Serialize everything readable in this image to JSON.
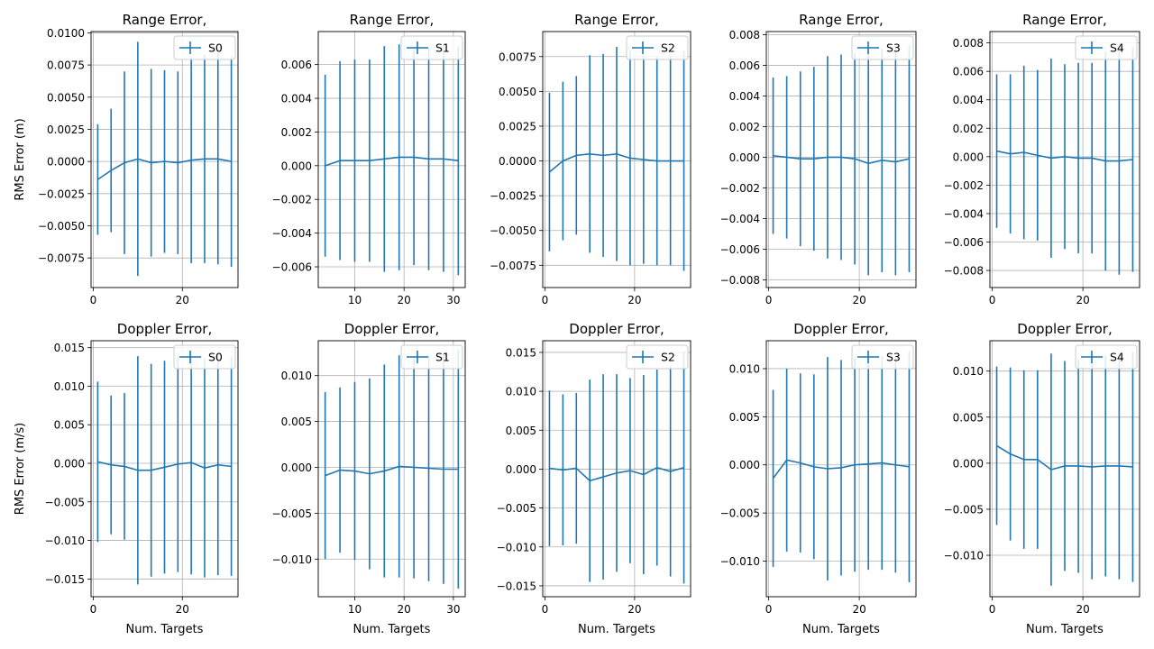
{
  "figure": {
    "background": "#ffffff",
    "line_color": "#1f77b4",
    "grid_color": "#b0b0b0"
  },
  "chart_data": [
    {
      "type": "line",
      "title": "Range Error,",
      "legend": "S0",
      "legend_loc": "top-right",
      "xlabel": "",
      "ylabel": "RMS Error (m)",
      "grid": true,
      "xlim": [
        -0.5,
        32.5
      ],
      "ylim": [
        -0.0098,
        0.0101
      ],
      "xticks": [
        0,
        20
      ],
      "xticklabels": [
        "0",
        "20"
      ],
      "yticks": [
        -0.0075,
        -0.005,
        -0.0025,
        0,
        0.0025,
        0.005,
        0.0075,
        0.01
      ],
      "yticklabels": [
        "−0.0075",
        "−0.0050",
        "−0.0025",
        "0.0000",
        "0.0025",
        "0.0050",
        "0.0075",
        "0.0100"
      ],
      "x": [
        1,
        4,
        7,
        10,
        13,
        16,
        19,
        22,
        25,
        28,
        31
      ],
      "y": [
        -0.0014,
        -0.0007,
        -0.0001,
        0.0002,
        -0.0001,
        0.0,
        -0.0001,
        0.0001,
        0.0002,
        0.0002,
        0.0
      ],
      "err": [
        0.0043,
        0.0048,
        0.0071,
        0.0091,
        0.0073,
        0.0071,
        0.0071,
        0.008,
        0.0081,
        0.0082,
        0.0082
      ]
    },
    {
      "type": "line",
      "title": "Range Error,",
      "legend": "S1",
      "legend_loc": "top-right",
      "xlabel": "",
      "ylabel": "",
      "grid": true,
      "xlim": [
        2.6,
        32.4
      ],
      "ylim": [
        -0.00723,
        0.00796
      ],
      "xticks": [
        10,
        20,
        30
      ],
      "xticklabels": [
        "10",
        "20",
        "30"
      ],
      "yticks": [
        -0.006,
        -0.004,
        -0.002,
        0,
        0.002,
        0.004,
        0.006
      ],
      "yticklabels": [
        "−0.006",
        "−0.004",
        "−0.002",
        "0.000",
        "0.002",
        "0.004",
        "0.006"
      ],
      "x": [
        4,
        7,
        10,
        13,
        16,
        19,
        22,
        25,
        28,
        31
      ],
      "y": [
        0.0,
        0.0003,
        0.0003,
        0.0003,
        0.0004,
        0.0005,
        0.0005,
        0.0004,
        0.0004,
        0.0003
      ],
      "err": [
        0.0054,
        0.0059,
        0.006,
        0.006,
        0.0067,
        0.0067,
        0.0064,
        0.0066,
        0.0067,
        0.0068
      ]
    },
    {
      "type": "line",
      "title": "Range Error,",
      "legend": "S2",
      "legend_loc": "top-right",
      "xlabel": "",
      "ylabel": "",
      "grid": true,
      "xlim": [
        -0.5,
        32.5
      ],
      "ylim": [
        -0.0091,
        0.0093
      ],
      "xticks": [
        0,
        20
      ],
      "xticklabels": [
        "0",
        "20"
      ],
      "yticks": [
        -0.0075,
        -0.005,
        -0.0025,
        0,
        0.0025,
        0.005,
        0.0075
      ],
      "yticklabels": [
        "−0.0075",
        "−0.0050",
        "−0.0025",
        "0.0000",
        "0.0025",
        "0.0050",
        "0.0075"
      ],
      "x": [
        1,
        4,
        7,
        10,
        13,
        16,
        19,
        22,
        25,
        28,
        31
      ],
      "y": [
        -0.0008,
        0.0,
        0.0004,
        0.0005,
        0.0004,
        0.0005,
        0.0002,
        0.0001,
        0.0,
        0.0,
        0.0
      ],
      "err": [
        0.0057,
        0.0057,
        0.0057,
        0.0071,
        0.0073,
        0.0077,
        0.0077,
        0.0075,
        0.0075,
        0.0075,
        0.0079
      ]
    },
    {
      "type": "line",
      "title": "Range Error,",
      "legend": "S3",
      "legend_loc": "top-right",
      "xlabel": "",
      "ylabel": "",
      "grid": true,
      "xlim": [
        -0.5,
        32.5
      ],
      "ylim": [
        -0.0085,
        0.0082
      ],
      "xticks": [
        0,
        20
      ],
      "xticklabels": [
        "0",
        "20"
      ],
      "yticks": [
        -0.008,
        -0.006,
        -0.004,
        -0.002,
        0,
        0.002,
        0.004,
        0.006,
        0.008
      ],
      "yticklabels": [
        "−0.008",
        "−0.006",
        "−0.004",
        "−0.002",
        "0.000",
        "0.002",
        "0.004",
        "0.006",
        "0.008"
      ],
      "x": [
        1,
        4,
        7,
        10,
        13,
        16,
        19,
        22,
        25,
        28,
        31
      ],
      "y": [
        0.0001,
        0.0,
        -0.0001,
        -0.0001,
        0.0,
        0.0,
        -0.0001,
        -0.0004,
        -0.0002,
        -0.0003,
        -0.0001
      ],
      "err": [
        0.0051,
        0.0053,
        0.0057,
        0.006,
        0.0066,
        0.0067,
        0.0069,
        0.0073,
        0.0073,
        0.0074,
        0.0074
      ]
    },
    {
      "type": "line",
      "title": "Range Error,",
      "legend": "S4",
      "legend_loc": "top-right",
      "xlabel": "",
      "ylabel": "",
      "grid": true,
      "xlim": [
        -0.5,
        32.5
      ],
      "ylim": [
        -0.0092,
        0.0088
      ],
      "xticks": [
        0,
        20
      ],
      "xticklabels": [
        "0",
        "20"
      ],
      "yticks": [
        -0.008,
        -0.006,
        -0.004,
        -0.002,
        0,
        0.002,
        0.004,
        0.006,
        0.008
      ],
      "yticklabels": [
        "−0.008",
        "−0.006",
        "−0.004",
        "−0.002",
        "0.000",
        "0.002",
        "0.004",
        "0.006",
        "0.008"
      ],
      "x": [
        1,
        4,
        7,
        10,
        13,
        16,
        19,
        22,
        25,
        28,
        31
      ],
      "y": [
        0.0004,
        0.0002,
        0.0003,
        0.0001,
        -0.0001,
        0.0,
        -0.0001,
        -0.0001,
        -0.0003,
        -0.0003,
        -0.0002
      ],
      "err": [
        0.0054,
        0.0056,
        0.0061,
        0.006,
        0.007,
        0.0065,
        0.0067,
        0.0067,
        0.0077,
        0.008,
        0.0079
      ]
    },
    {
      "type": "line",
      "title": "Doppler Error,",
      "legend": "S0",
      "legend_loc": "top-right",
      "xlabel": "Num. Targets",
      "ylabel": "RMS Error (m/s)",
      "grid": true,
      "xlim": [
        -0.5,
        32.5
      ],
      "ylim": [
        -0.0173,
        0.0159
      ],
      "xticks": [
        0,
        20
      ],
      "xticklabels": [
        "0",
        "20"
      ],
      "yticks": [
        -0.015,
        -0.01,
        -0.005,
        0,
        0.005,
        0.01,
        0.015
      ],
      "yticklabels": [
        "−0.015",
        "−0.010",
        "−0.005",
        "0.000",
        "0.005",
        "0.010",
        "0.015"
      ],
      "x": [
        1,
        4,
        7,
        10,
        13,
        16,
        19,
        22,
        25,
        28,
        31
      ],
      "y": [
        0.0002,
        -0.0002,
        -0.0004,
        -0.0009,
        -0.0009,
        -0.0005,
        -0.0001,
        0.0001,
        -0.0006,
        -0.0002,
        -0.0004
      ],
      "err": [
        0.0104,
        0.009,
        0.0095,
        0.0148,
        0.0138,
        0.0138,
        0.014,
        0.0145,
        0.0142,
        0.0143,
        0.0142
      ]
    },
    {
      "type": "line",
      "title": "Doppler Error,",
      "legend": "S1",
      "legend_loc": "top-right",
      "xlabel": "Num. Targets",
      "ylabel": "",
      "grid": true,
      "xlim": [
        2.6,
        32.4
      ],
      "ylim": [
        -0.0141,
        0.0138
      ],
      "xticks": [
        10,
        20,
        30
      ],
      "xticklabels": [
        "10",
        "20",
        "30"
      ],
      "yticks": [
        -0.01,
        -0.005,
        0,
        0.005,
        0.01
      ],
      "yticklabels": [
        "−0.010",
        "−0.005",
        "0.000",
        "0.005",
        "0.010"
      ],
      "x": [
        4,
        7,
        10,
        13,
        16,
        19,
        22,
        25,
        28,
        31
      ],
      "y": [
        -0.0009,
        -0.0003,
        -0.0004,
        -0.0007,
        -0.0004,
        0.0001,
        0.0,
        -0.0001,
        -0.0002,
        -0.0002
      ],
      "err": [
        0.0091,
        0.009,
        0.0097,
        0.0104,
        0.0116,
        0.0121,
        0.0121,
        0.0123,
        0.0125,
        0.013
      ]
    },
    {
      "type": "line",
      "title": "Doppler Error,",
      "legend": "S2",
      "legend_loc": "top-right",
      "xlabel": "Num. Targets",
      "ylabel": "",
      "grid": true,
      "xlim": [
        -0.5,
        32.5
      ],
      "ylim": [
        -0.0164,
        0.0165
      ],
      "xticks": [
        0,
        20
      ],
      "xticklabels": [
        "0",
        "20"
      ],
      "yticks": [
        -0.015,
        -0.01,
        -0.005,
        0,
        0.005,
        0.01,
        0.015
      ],
      "yticklabels": [
        "−0.015",
        "−0.010",
        "−0.005",
        "0.000",
        "0.005",
        "0.010",
        "0.015"
      ],
      "x": [
        1,
        4,
        7,
        10,
        13,
        16,
        19,
        22,
        25,
        28,
        31
      ],
      "y": [
        0.0001,
        -0.0001,
        0.0001,
        -0.0015,
        -0.001,
        -0.0005,
        -0.0002,
        -0.0007,
        0.0002,
        -0.0003,
        0.0002
      ],
      "err": [
        0.01,
        0.0097,
        0.0097,
        0.013,
        0.0132,
        0.0127,
        0.0119,
        0.0128,
        0.0126,
        0.0135,
        0.0149
      ]
    },
    {
      "type": "line",
      "title": "Doppler Error,",
      "legend": "S3",
      "legend_loc": "top-right",
      "xlabel": "Num. Targets",
      "ylabel": "",
      "grid": true,
      "xlim": [
        -0.5,
        32.5
      ],
      "ylim": [
        -0.0137,
        0.0129
      ],
      "xticks": [
        0,
        20
      ],
      "xticklabels": [
        "0",
        "20"
      ],
      "yticks": [
        -0.01,
        -0.005,
        0,
        0.005,
        0.01
      ],
      "yticklabels": [
        "−0.010",
        "−0.005",
        "0.000",
        "0.005",
        "0.010"
      ],
      "x": [
        1,
        4,
        7,
        10,
        13,
        16,
        19,
        22,
        25,
        28,
        31
      ],
      "y": [
        -0.0014,
        0.0005,
        0.0002,
        -0.0002,
        -0.0004,
        -0.0003,
        0.0,
        0.0001,
        0.0002,
        0.0,
        -0.0002
      ],
      "err": [
        0.0092,
        0.0095,
        0.0093,
        0.0096,
        0.0116,
        0.0112,
        0.0111,
        0.011,
        0.0111,
        0.0112,
        0.012
      ]
    },
    {
      "type": "line",
      "title": "Doppler Error,",
      "legend": "S4",
      "legend_loc": "top-right",
      "xlabel": "Num. Targets",
      "ylabel": "",
      "grid": true,
      "xlim": [
        -0.5,
        32.5
      ],
      "ylim": [
        -0.0145,
        0.0133
      ],
      "xticks": [
        0,
        20
      ],
      "xticklabels": [
        "0",
        "20"
      ],
      "yticks": [
        -0.01,
        -0.005,
        0,
        0.005,
        0.01
      ],
      "yticklabels": [
        "−0.010",
        "−0.005",
        "0.000",
        "0.005",
        "0.010"
      ],
      "x": [
        1,
        4,
        7,
        10,
        13,
        16,
        19,
        22,
        25,
        28,
        31
      ],
      "y": [
        0.0019,
        0.001,
        0.0004,
        0.0004,
        -0.0007,
        -0.0003,
        -0.0003,
        -0.0004,
        -0.0003,
        -0.0003,
        -0.0004
      ],
      "err": [
        0.0086,
        0.0094,
        0.0097,
        0.0097,
        0.0126,
        0.0114,
        0.0116,
        0.0122,
        0.012,
        0.0123,
        0.0125
      ]
    }
  ]
}
